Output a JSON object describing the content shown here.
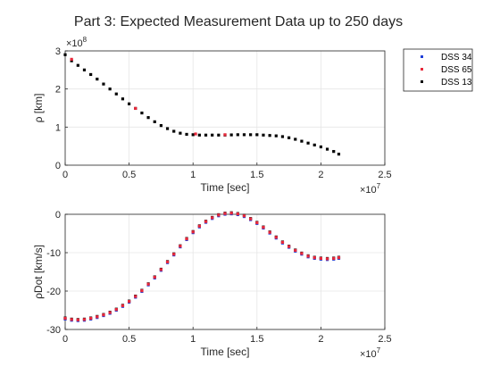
{
  "title": "Part 3: Expected Measurement Data up to 250 days",
  "colors": {
    "dss34": "#1f3fd8",
    "dss65": "#e8283a",
    "dss13": "#000000",
    "grid": "#e6e6e6",
    "axis": "#262626"
  },
  "legend": {
    "placement": "top-right (outside)",
    "entries": [
      "DSS 34",
      "DSS 65",
      "DSS 13"
    ]
  },
  "chart_data": [
    {
      "type": "scatter",
      "xlabel": "Time [sec]",
      "ylabel": "ρ [km]",
      "x_exponent": "×10^7",
      "y_exponent": "×10^8",
      "xlim": [
        0,
        2.5
      ],
      "ylim": [
        0,
        3
      ],
      "xticks": [
        "0",
        "0.5",
        "1",
        "1.5",
        "2",
        "2.5"
      ],
      "yticks": [
        "0",
        "1",
        "2",
        "3"
      ],
      "x_exp_base": "×10",
      "x_exp_power": "7",
      "y_exp_base": "×10",
      "y_exp_power": "8",
      "grid": true,
      "x": [
        0.0,
        0.05,
        0.1,
        0.15,
        0.2,
        0.25,
        0.3,
        0.35,
        0.4,
        0.45,
        0.5,
        0.55,
        0.6,
        0.65,
        0.7,
        0.75,
        0.8,
        0.85,
        0.9,
        0.95,
        1.0,
        1.05,
        1.1,
        1.15,
        1.2,
        1.25,
        1.3,
        1.35,
        1.4,
        1.45,
        1.5,
        1.55,
        1.6,
        1.65,
        1.7,
        1.75,
        1.8,
        1.85,
        1.9,
        1.95,
        2.0,
        2.05,
        2.1,
        2.14
      ],
      "series": [
        {
          "name": "DSS 13",
          "color": "#000000",
          "values": [
            2.9,
            2.74,
            2.62,
            2.5,
            2.38,
            2.26,
            2.13,
            2.0,
            1.87,
            1.74,
            1.61,
            1.49,
            1.37,
            1.25,
            1.14,
            1.04,
            0.96,
            0.89,
            0.84,
            0.81,
            0.8,
            0.79,
            0.79,
            0.79,
            0.79,
            0.79,
            0.795,
            0.8,
            0.8,
            0.8,
            0.8,
            0.79,
            0.78,
            0.77,
            0.75,
            0.72,
            0.68,
            0.63,
            0.58,
            0.53,
            0.48,
            0.42,
            0.36,
            0.29
          ]
        },
        {
          "name": "DSS 65",
          "color": "#e8283a",
          "x_points": [
            0.05,
            0.55,
            1.02,
            1.25
          ],
          "values": [
            2.78,
            1.49,
            0.82,
            0.8
          ]
        }
      ]
    },
    {
      "type": "scatter",
      "xlabel": "Time [sec]",
      "ylabel": "ρDot [km/s]",
      "x_exponent": "×10^7",
      "xlim": [
        0,
        2.5
      ],
      "ylim": [
        -30,
        0
      ],
      "xticks": [
        "0",
        "0.5",
        "1",
        "1.5",
        "2",
        "2.5"
      ],
      "yticks": [
        "-30",
        "-20",
        "-10",
        "0"
      ],
      "x_exp_base": "×10",
      "x_exp_power": "7",
      "grid": true,
      "x": [
        0.0,
        0.05,
        0.1,
        0.15,
        0.2,
        0.25,
        0.3,
        0.35,
        0.4,
        0.45,
        0.5,
        0.55,
        0.6,
        0.65,
        0.7,
        0.75,
        0.8,
        0.85,
        0.9,
        0.95,
        1.0,
        1.05,
        1.1,
        1.15,
        1.2,
        1.25,
        1.3,
        1.35,
        1.4,
        1.45,
        1.5,
        1.55,
        1.6,
        1.65,
        1.7,
        1.75,
        1.8,
        1.85,
        1.9,
        1.95,
        2.0,
        2.05,
        2.1,
        2.14
      ],
      "series": [
        {
          "name": "DSS 13",
          "color": "#000000",
          "values": [
            -27.0,
            -27.3,
            -27.4,
            -27.3,
            -27.0,
            -26.6,
            -26.1,
            -25.5,
            -24.7,
            -23.7,
            -22.6,
            -21.3,
            -19.8,
            -18.1,
            -16.3,
            -14.3,
            -12.3,
            -10.3,
            -8.2,
            -6.3,
            -4.5,
            -3.0,
            -1.8,
            -0.8,
            -0.1,
            0.3,
            0.4,
            0.2,
            -0.3,
            -1.1,
            -2.1,
            -3.3,
            -4.6,
            -5.9,
            -7.2,
            -8.3,
            -9.3,
            -10.1,
            -10.8,
            -11.2,
            -11.4,
            -11.5,
            -11.4,
            -11.2
          ]
        },
        {
          "name": "DSS 34",
          "color": "#1f3fd8",
          "values": [
            -27.3,
            -27.6,
            -27.7,
            -27.6,
            -27.3,
            -26.9,
            -26.4,
            -25.8,
            -25.0,
            -24.0,
            -22.9,
            -21.6,
            -20.1,
            -18.4,
            -16.6,
            -14.6,
            -12.6,
            -10.6,
            -8.5,
            -6.6,
            -4.8,
            -3.3,
            -2.1,
            -1.1,
            -0.4,
            0.0,
            0.1,
            -0.1,
            -0.6,
            -1.4,
            -2.4,
            -3.6,
            -4.9,
            -6.2,
            -7.5,
            -8.6,
            -9.6,
            -10.4,
            -11.1,
            -11.5,
            -11.7,
            -11.8,
            -11.7,
            -11.5
          ]
        },
        {
          "name": "DSS 65",
          "color": "#e8283a",
          "values": [
            -27.1,
            -27.4,
            -27.5,
            -27.4,
            -27.1,
            -26.7,
            -26.2,
            -25.6,
            -24.8,
            -23.8,
            -22.7,
            -21.4,
            -19.9,
            -18.2,
            -16.4,
            -14.4,
            -12.4,
            -10.4,
            -8.3,
            -6.4,
            -4.6,
            -3.1,
            -1.9,
            -0.9,
            -0.2,
            0.2,
            0.3,
            0.1,
            -0.4,
            -1.2,
            -2.2,
            -3.4,
            -4.7,
            -6.0,
            -7.3,
            -8.4,
            -9.4,
            -10.2,
            -10.9,
            -11.3,
            -11.5,
            -11.6,
            -11.5,
            -11.3
          ]
        }
      ]
    }
  ]
}
